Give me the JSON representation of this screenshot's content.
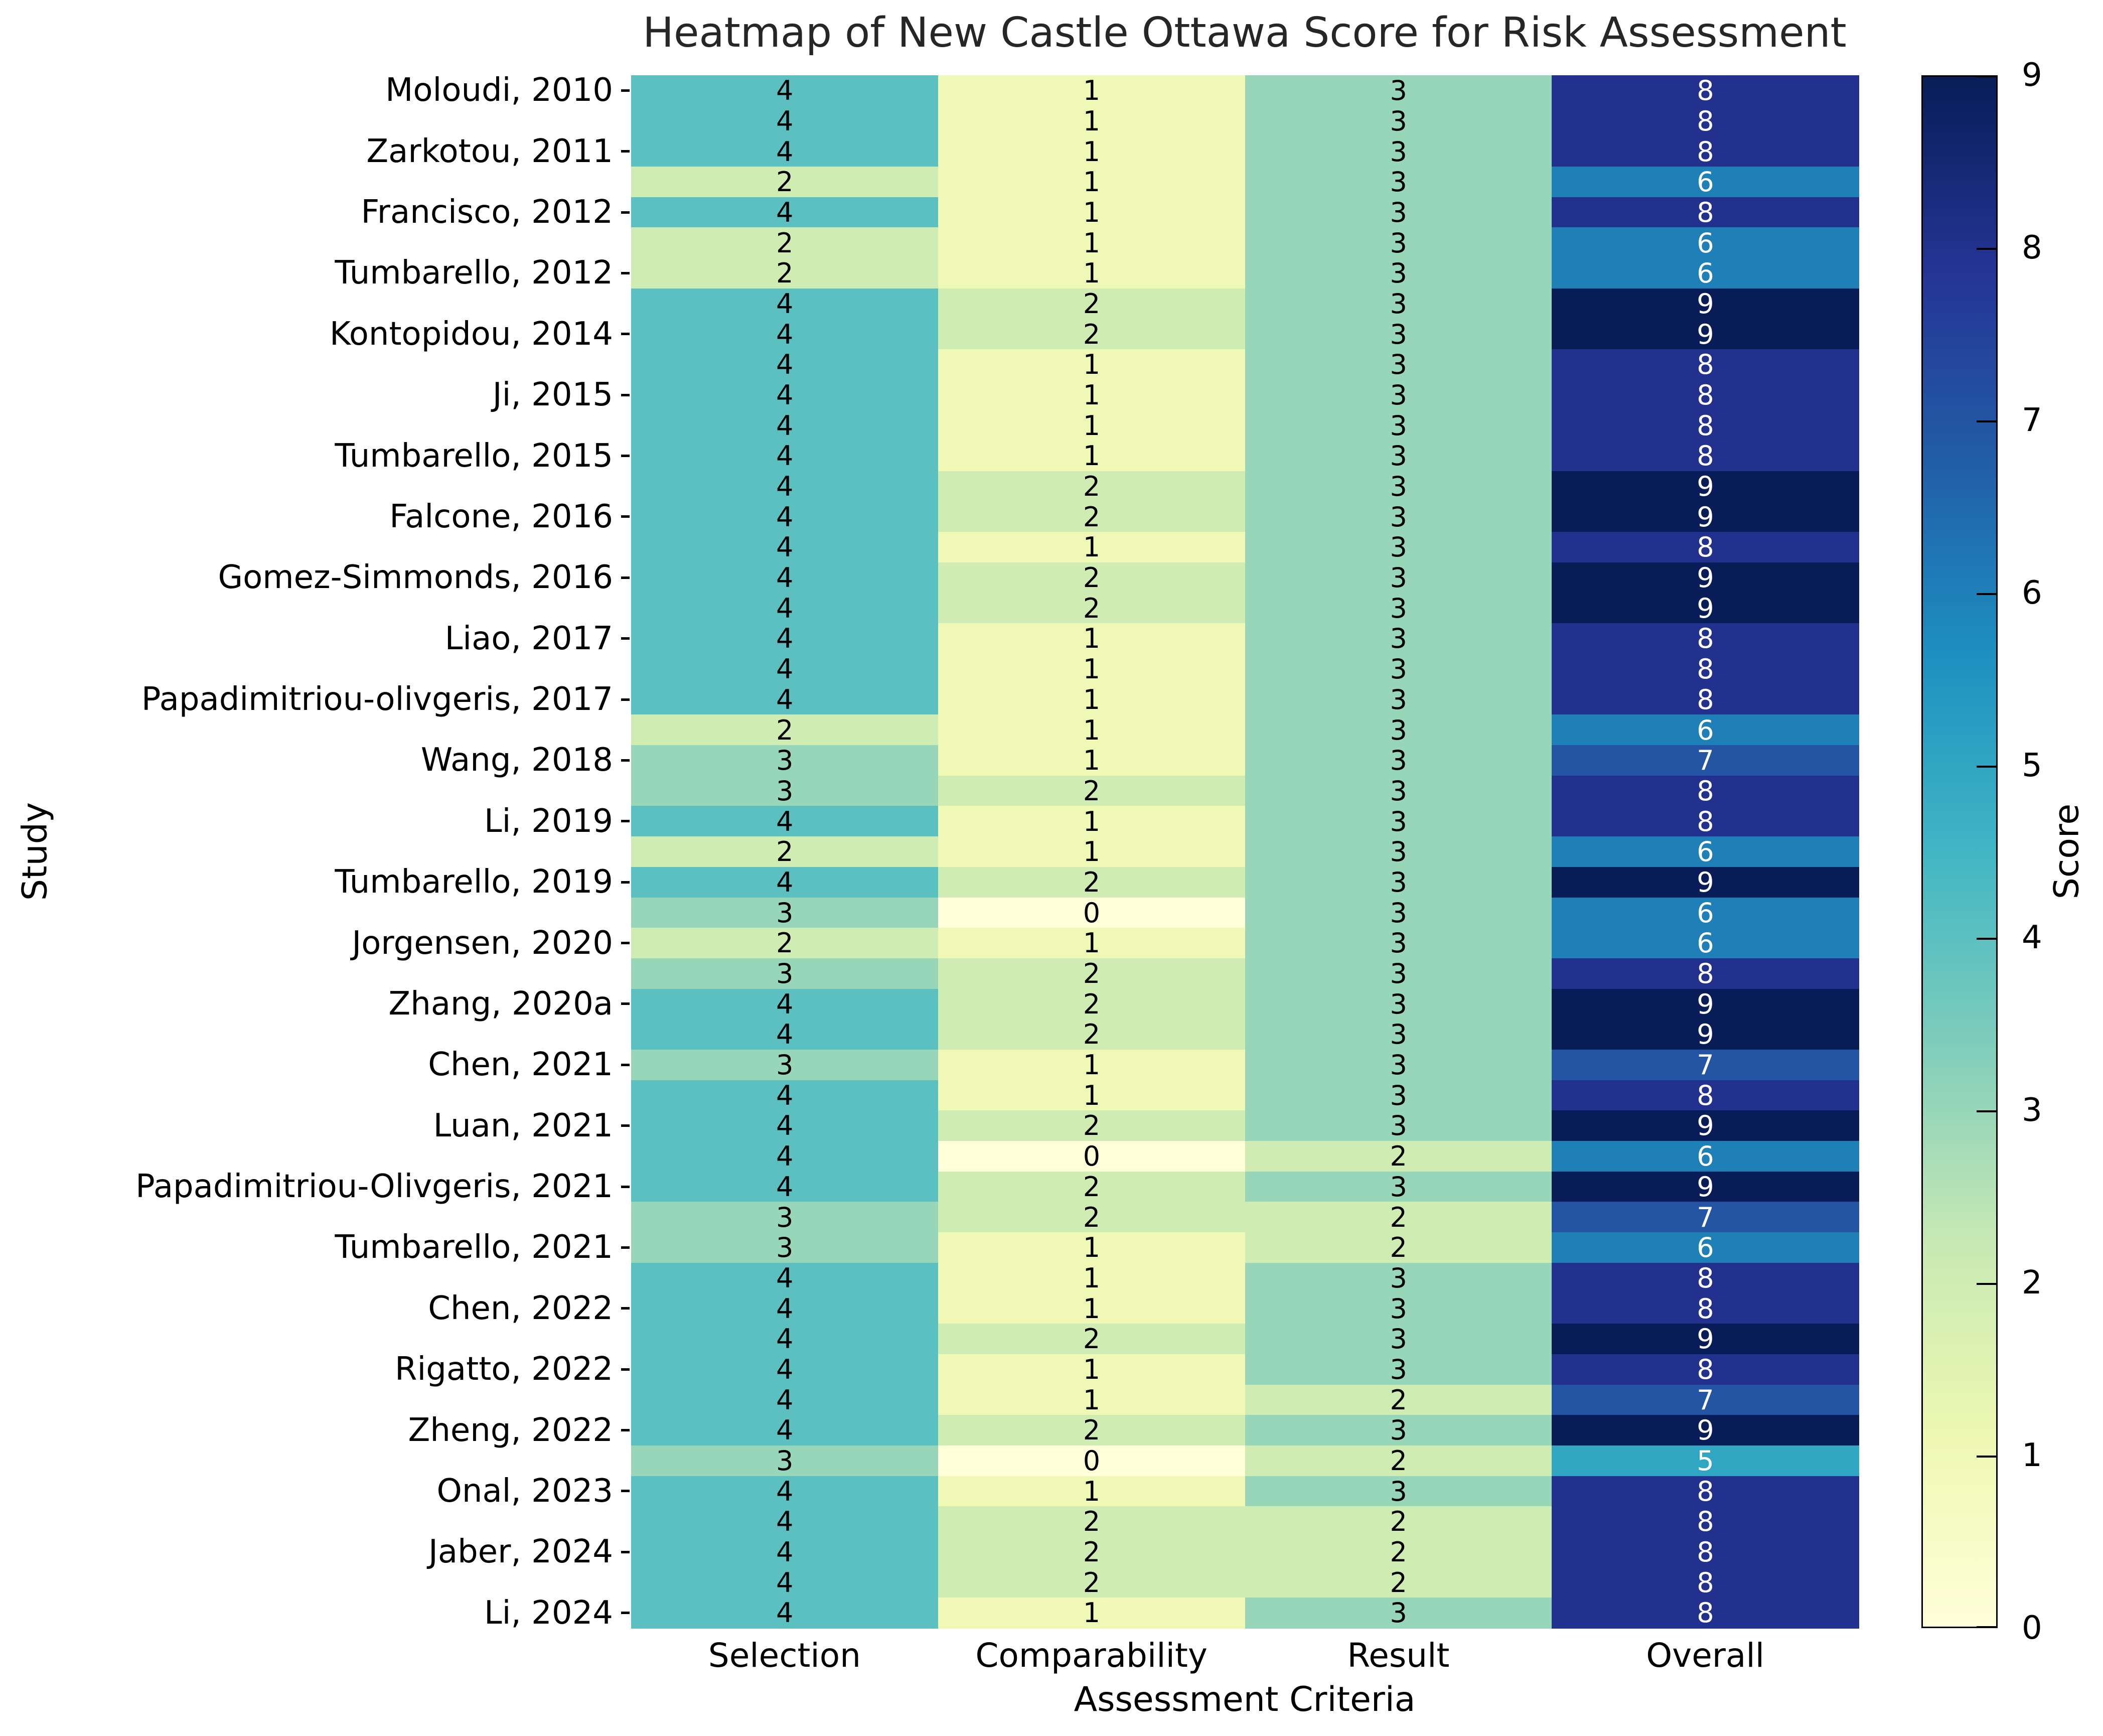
{
  "chart_data": {
    "type": "heatmap",
    "title": "Heatmap of New Castle Ottawa Score for Risk Assessment",
    "xlabel": "Assessment Criteria",
    "ylabel": "Study",
    "columns": [
      "Selection",
      "Comparability",
      "Result",
      "Overall"
    ],
    "rows": [
      {
        "label": "Moloudi, 2010",
        "values": [
          4,
          1,
          3,
          8
        ]
      },
      {
        "label": "",
        "values": [
          4,
          1,
          3,
          8
        ]
      },
      {
        "label": "Zarkotou, 2011",
        "values": [
          4,
          1,
          3,
          8
        ]
      },
      {
        "label": "",
        "values": [
          2,
          1,
          3,
          6
        ]
      },
      {
        "label": "Francisco, 2012",
        "values": [
          4,
          1,
          3,
          8
        ]
      },
      {
        "label": "",
        "values": [
          2,
          1,
          3,
          6
        ]
      },
      {
        "label": "Tumbarello, 2012",
        "values": [
          2,
          1,
          3,
          6
        ]
      },
      {
        "label": "",
        "values": [
          4,
          2,
          3,
          9
        ]
      },
      {
        "label": "Kontopidou, 2014",
        "values": [
          4,
          2,
          3,
          9
        ]
      },
      {
        "label": "",
        "values": [
          4,
          1,
          3,
          8
        ]
      },
      {
        "label": "Ji, 2015",
        "values": [
          4,
          1,
          3,
          8
        ]
      },
      {
        "label": "",
        "values": [
          4,
          1,
          3,
          8
        ]
      },
      {
        "label": "Tumbarello, 2015",
        "values": [
          4,
          1,
          3,
          8
        ]
      },
      {
        "label": "",
        "values": [
          4,
          2,
          3,
          9
        ]
      },
      {
        "label": "Falcone, 2016",
        "values": [
          4,
          2,
          3,
          9
        ]
      },
      {
        "label": "",
        "values": [
          4,
          1,
          3,
          8
        ]
      },
      {
        "label": "Gomez-Simmonds, 2016",
        "values": [
          4,
          2,
          3,
          9
        ]
      },
      {
        "label": "",
        "values": [
          4,
          2,
          3,
          9
        ]
      },
      {
        "label": "Liao, 2017",
        "values": [
          4,
          1,
          3,
          8
        ]
      },
      {
        "label": "",
        "values": [
          4,
          1,
          3,
          8
        ]
      },
      {
        "label": "Papadimitriou-olivgeris, 2017",
        "values": [
          4,
          1,
          3,
          8
        ]
      },
      {
        "label": "",
        "values": [
          2,
          1,
          3,
          6
        ]
      },
      {
        "label": "Wang, 2018",
        "values": [
          3,
          1,
          3,
          7
        ]
      },
      {
        "label": "",
        "values": [
          3,
          2,
          3,
          8
        ]
      },
      {
        "label": "Li, 2019",
        "values": [
          4,
          1,
          3,
          8
        ]
      },
      {
        "label": "",
        "values": [
          2,
          1,
          3,
          6
        ]
      },
      {
        "label": "Tumbarello, 2019",
        "values": [
          4,
          2,
          3,
          9
        ]
      },
      {
        "label": "",
        "values": [
          3,
          0,
          3,
          6
        ]
      },
      {
        "label": "Jorgensen, 2020",
        "values": [
          2,
          1,
          3,
          6
        ]
      },
      {
        "label": "",
        "values": [
          3,
          2,
          3,
          8
        ]
      },
      {
        "label": "Zhang, 2020a",
        "values": [
          4,
          2,
          3,
          9
        ]
      },
      {
        "label": "",
        "values": [
          4,
          2,
          3,
          9
        ]
      },
      {
        "label": "Chen, 2021",
        "values": [
          3,
          1,
          3,
          7
        ]
      },
      {
        "label": "",
        "values": [
          4,
          1,
          3,
          8
        ]
      },
      {
        "label": "Luan, 2021",
        "values": [
          4,
          2,
          3,
          9
        ]
      },
      {
        "label": "",
        "values": [
          4,
          0,
          2,
          6
        ]
      },
      {
        "label": "Papadimitriou-Olivgeris, 2021",
        "values": [
          4,
          2,
          3,
          9
        ]
      },
      {
        "label": "",
        "values": [
          3,
          2,
          2,
          7
        ]
      },
      {
        "label": "Tumbarello, 2021",
        "values": [
          3,
          1,
          2,
          6
        ]
      },
      {
        "label": "",
        "values": [
          4,
          1,
          3,
          8
        ]
      },
      {
        "label": "Chen, 2022",
        "values": [
          4,
          1,
          3,
          8
        ]
      },
      {
        "label": "",
        "values": [
          4,
          2,
          3,
          9
        ]
      },
      {
        "label": "Rigatto, 2022",
        "values": [
          4,
          1,
          3,
          8
        ]
      },
      {
        "label": "",
        "values": [
          4,
          1,
          2,
          7
        ]
      },
      {
        "label": "Zheng, 2022",
        "values": [
          4,
          2,
          3,
          9
        ]
      },
      {
        "label": "",
        "values": [
          3,
          0,
          2,
          5
        ]
      },
      {
        "label": "Onal, 2023",
        "values": [
          4,
          1,
          3,
          8
        ]
      },
      {
        "label": "",
        "values": [
          4,
          2,
          2,
          8
        ]
      },
      {
        "label": "Jaber, 2024",
        "values": [
          4,
          2,
          2,
          8
        ]
      },
      {
        "label": "",
        "values": [
          4,
          2,
          2,
          8
        ]
      },
      {
        "label": "Li, 2024",
        "values": [
          4,
          1,
          3,
          8
        ]
      }
    ],
    "colorbar": {
      "label": "Score",
      "ticks": [
        0,
        1,
        2,
        3,
        4,
        5,
        6,
        7,
        8,
        9
      ],
      "vmin": 0,
      "vmax": 9
    },
    "palette": {
      "name": "YlGnBu",
      "anchors": [
        "#ffffd9",
        "#edf8b1",
        "#c7e9b4",
        "#7fcdbb",
        "#41b6c4",
        "#1d91c0",
        "#225ea8",
        "#253494",
        "#081d58"
      ]
    },
    "annotation_text_colors": {
      "light_cell": "#000000",
      "dark_cell": "#ffffff"
    }
  }
}
